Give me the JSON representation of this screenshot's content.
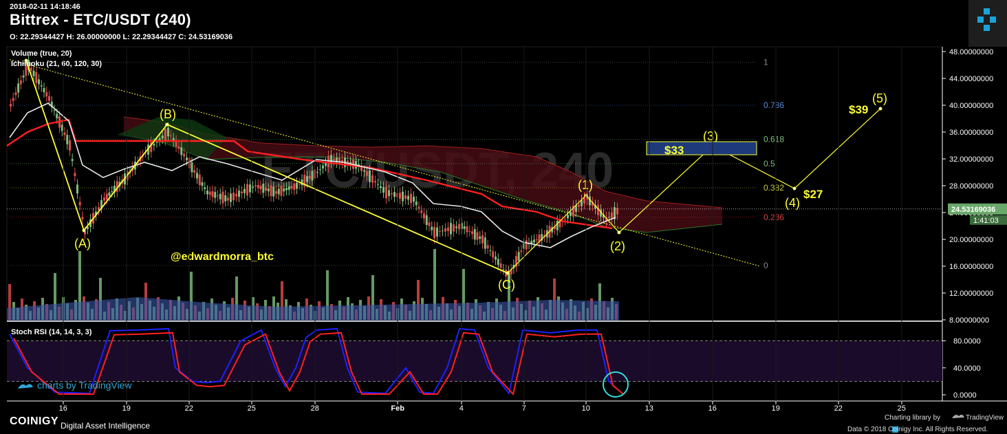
{
  "header": {
    "timestamp": "2018-02-11 14:18:46",
    "title": "Bittrex - ETC/USDT (240)",
    "ohlc": "O: 22.29344427 H: 26.00000000 L: 22.29344427 C: 24.53169036"
  },
  "indicators": {
    "volume": "Volume (true, 20)",
    "ichimoku": "Ichimoku (21, 60, 120, 30)",
    "stoch": "Stoch RSI (14, 14, 3, 3)"
  },
  "watermark": "@edwardmorra_btc",
  "tradingview_badge": "charts by TradingView",
  "price_tag": {
    "value": "24.53169036",
    "countdown": "1:41:03"
  },
  "footer": {
    "brand": "COINIGY",
    "tagline": "Digital Asset Intelligence",
    "library": "Charting library by",
    "tv": "TradingView",
    "credit": "Data © 2018  Coinigy Inc. All Rights Reserved."
  },
  "colors": {
    "background": "#000000",
    "wave_lines": "#ffff33",
    "up_candle": "#7fbf7f",
    "down_candle": "#e24c4c",
    "kijun": "#ff2020",
    "tenkan": "#e8e8e8",
    "stoch_k": "#2020ff",
    "stoch_d": "#ff2020",
    "target_box": "#1e3a7a"
  },
  "chart_data": {
    "type": "candlestick",
    "x_ticks": [
      "16",
      "19",
      "22",
      "25",
      "28",
      "Feb",
      "4",
      "7",
      "10",
      "13",
      "16",
      "19",
      "22",
      "25"
    ],
    "y_ticks": [
      "48.00000000",
      "44.00000000",
      "40.00000000",
      "36.00000000",
      "32.00000000",
      "28.00000000",
      "24.00000000",
      "20.00000000",
      "16.00000000",
      "12.00000000",
      "8.00000000"
    ],
    "ylim": [
      8,
      48
    ],
    "last_price": 24.53169036,
    "fib_levels": [
      {
        "label": "1",
        "value": 46.4
      },
      {
        "label": "0.786",
        "value": 40.0
      },
      {
        "label": "0.618",
        "value": 34.9
      },
      {
        "label": "0.5",
        "value": 31.3
      },
      {
        "label": "0.382",
        "value": 27.7
      },
      {
        "label": "0.236",
        "value": 23.3
      },
      {
        "label": "0",
        "value": 16.1
      }
    ],
    "wave_labels": [
      {
        "label": "(A)",
        "x": 16.8,
        "y": 20.8
      },
      {
        "label": "(B)",
        "x": 21.0,
        "y": 36.8
      },
      {
        "label": "(C)",
        "x": 6.2,
        "y": 14.4
      },
      {
        "label": "(1)",
        "x": 10.0,
        "y": 26.2
      },
      {
        "label": "(2)",
        "x": 11.5,
        "y": 20.4
      },
      {
        "label": "(3)",
        "x": 16.0,
        "y": 33.6
      },
      {
        "label": "(4)",
        "x": 19.8,
        "y": 27.2
      },
      {
        "label": "(5)",
        "x": 24.0,
        "y": 39.4
      }
    ],
    "price_targets": [
      {
        "label": "$33",
        "value": 33
      },
      {
        "label": "$27",
        "value": 27
      },
      {
        "label": "$39",
        "value": 39
      }
    ],
    "stoch": {
      "y_ticks": [
        "80.0000",
        "40.0000",
        "0.0000"
      ],
      "ylim": [
        0,
        100
      ],
      "bands": [
        80,
        20
      ]
    }
  }
}
